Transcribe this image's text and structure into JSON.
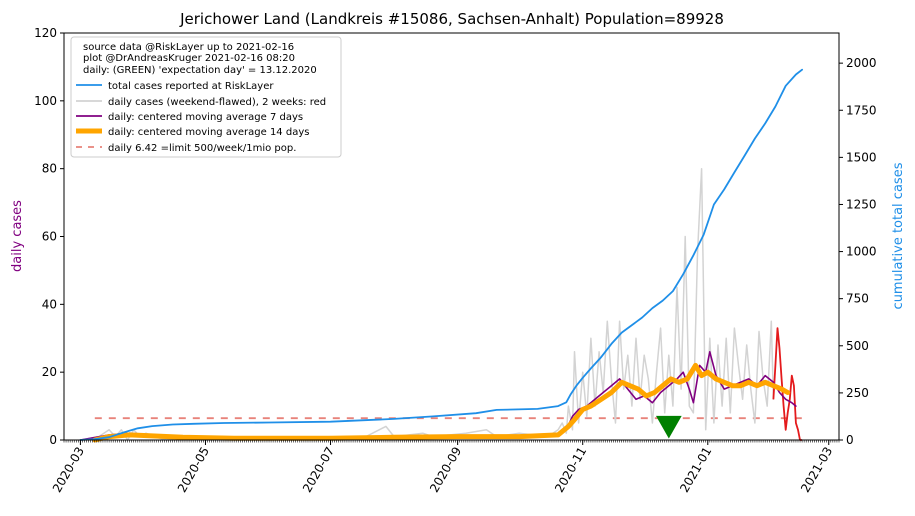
{
  "chart_data": {
    "type": "line",
    "title": "Jerichower Land (Landkreis #15086, Sachsen-Anhalt) Population=89928",
    "ylabel_left": "daily cases",
    "ylabel_right": "cumulative total cases",
    "ylim_left": [
      0,
      120
    ],
    "ylim_right": [
      0,
      2160
    ],
    "yticks_left": [
      0,
      20,
      40,
      60,
      80,
      100,
      120
    ],
    "yticks_right": [
      0,
      250,
      500,
      750,
      1000,
      1250,
      1500,
      1750,
      2000
    ],
    "xlim": [
      "2020-02-22",
      "2021-03-06"
    ],
    "xticks": [
      "2020-03",
      "2020-05",
      "2020-07",
      "2020-09",
      "2020-11",
      "2021-01",
      "2021-03"
    ],
    "grid": false,
    "legend_position": "top-left",
    "legend_info_lines": [
      "source data @RiskLayer up to 2021-02-16",
      "plot @DrAndreasKruger 2021-02-16 08:20",
      "daily: (GREEN) 'expectation day' = 13.12.2020"
    ],
    "expectation_day": {
      "date": "2020-12-13",
      "y": 4,
      "color": "#008000"
    },
    "limit_line": {
      "value": 6.42
    },
    "series": [
      {
        "name": "total cases reported at RiskLayer",
        "axis": "right",
        "color": "#1f8fe8",
        "points": [
          [
            "2020-03-01",
            0
          ],
          [
            "2020-03-08",
            5
          ],
          [
            "2020-03-15",
            15
          ],
          [
            "2020-03-22",
            40
          ],
          [
            "2020-03-29",
            62
          ],
          [
            "2020-04-05",
            74
          ],
          [
            "2020-04-15",
            82
          ],
          [
            "2020-04-25",
            86
          ],
          [
            "2020-05-10",
            90
          ],
          [
            "2020-06-01",
            93
          ],
          [
            "2020-07-01",
            97
          ],
          [
            "2020-08-01",
            112
          ],
          [
            "2020-08-20",
            125
          ],
          [
            "2020-09-10",
            142
          ],
          [
            "2020-09-20",
            160
          ],
          [
            "2020-10-10",
            165
          ],
          [
            "2020-10-20",
            180
          ],
          [
            "2020-10-24",
            200
          ],
          [
            "2020-10-26",
            240
          ],
          [
            "2020-10-29",
            290
          ],
          [
            "2020-11-01",
            330
          ],
          [
            "2020-11-05",
            380
          ],
          [
            "2020-11-10",
            440
          ],
          [
            "2020-11-15",
            510
          ],
          [
            "2020-11-20",
            570
          ],
          [
            "2020-11-25",
            610
          ],
          [
            "2020-11-30",
            650
          ],
          [
            "2020-12-05",
            700
          ],
          [
            "2020-12-10",
            740
          ],
          [
            "2020-12-15",
            790
          ],
          [
            "2020-12-20",
            880
          ],
          [
            "2020-12-25",
            980
          ],
          [
            "2020-12-30",
            1090
          ],
          [
            "2021-01-04",
            1250
          ],
          [
            "2021-01-09",
            1330
          ],
          [
            "2021-01-14",
            1420
          ],
          [
            "2021-01-19",
            1510
          ],
          [
            "2021-01-24",
            1600
          ],
          [
            "2021-01-29",
            1680
          ],
          [
            "2021-02-03",
            1770
          ],
          [
            "2021-02-08",
            1880
          ],
          [
            "2021-02-13",
            1940
          ],
          [
            "2021-02-16",
            1965
          ]
        ]
      },
      {
        "name": "daily cases (weekend-flawed), 2 weeks: red",
        "axis": "left",
        "color": "#d3d3d3",
        "recent_color": "#e41a1c",
        "points": [
          [
            "2020-03-01",
            0
          ],
          [
            "2020-03-10",
            1
          ],
          [
            "2020-03-15",
            3
          ],
          [
            "2020-03-18",
            1
          ],
          [
            "2020-03-21",
            3
          ],
          [
            "2020-03-24",
            0
          ],
          [
            "2020-03-27",
            3
          ],
          [
            "2020-03-30",
            1
          ],
          [
            "2020-04-02",
            2
          ],
          [
            "2020-04-06",
            1
          ],
          [
            "2020-04-12",
            0
          ],
          [
            "2020-04-20",
            1
          ],
          [
            "2020-05-01",
            0
          ],
          [
            "2020-05-10",
            1
          ],
          [
            "2020-06-01",
            0
          ],
          [
            "2020-07-01",
            1
          ],
          [
            "2020-07-15",
            0
          ],
          [
            "2020-07-28",
            4
          ],
          [
            "2020-08-01",
            1
          ],
          [
            "2020-08-15",
            2
          ],
          [
            "2020-08-20",
            1
          ],
          [
            "2020-09-05",
            2
          ],
          [
            "2020-09-15",
            3
          ],
          [
            "2020-09-20",
            1
          ],
          [
            "2020-10-01",
            2
          ],
          [
            "2020-10-15",
            1
          ],
          [
            "2020-10-20",
            3
          ],
          [
            "2020-10-22",
            5
          ],
          [
            "2020-10-24",
            2
          ],
          [
            "2020-10-25",
            10
          ],
          [
            "2020-10-27",
            3
          ],
          [
            "2020-10-28",
            26
          ],
          [
            "2020-10-30",
            5
          ],
          [
            "2020-11-01",
            20
          ],
          [
            "2020-11-03",
            7
          ],
          [
            "2020-11-05",
            30
          ],
          [
            "2020-11-07",
            10
          ],
          [
            "2020-11-09",
            26
          ],
          [
            "2020-11-11",
            14
          ],
          [
            "2020-11-13",
            35
          ],
          [
            "2020-11-15",
            18
          ],
          [
            "2020-11-17",
            5
          ],
          [
            "2020-11-19",
            35
          ],
          [
            "2020-11-21",
            15
          ],
          [
            "2020-11-23",
            25
          ],
          [
            "2020-11-25",
            10
          ],
          [
            "2020-11-27",
            30
          ],
          [
            "2020-11-29",
            12
          ],
          [
            "2020-12-01",
            25
          ],
          [
            "2020-12-03",
            18
          ],
          [
            "2020-12-05",
            5
          ],
          [
            "2020-12-07",
            20
          ],
          [
            "2020-12-09",
            33
          ],
          [
            "2020-12-11",
            8
          ],
          [
            "2020-12-13",
            25
          ],
          [
            "2020-12-15",
            10
          ],
          [
            "2020-12-17",
            45
          ],
          [
            "2020-12-19",
            15
          ],
          [
            "2020-12-21",
            60
          ],
          [
            "2020-12-23",
            10
          ],
          [
            "2020-12-25",
            8
          ],
          [
            "2020-12-27",
            55
          ],
          [
            "2020-12-29",
            80
          ],
          [
            "2020-12-31",
            3
          ],
          [
            "2021-01-02",
            30
          ],
          [
            "2021-01-04",
            5
          ],
          [
            "2021-01-06",
            28
          ],
          [
            "2021-01-08",
            10
          ],
          [
            "2021-01-10",
            30
          ],
          [
            "2021-01-12",
            8
          ],
          [
            "2021-01-14",
            33
          ],
          [
            "2021-01-16",
            22
          ],
          [
            "2021-01-18",
            12
          ],
          [
            "2021-01-20",
            28
          ],
          [
            "2021-01-22",
            15
          ],
          [
            "2021-01-24",
            5
          ],
          [
            "2021-01-26",
            32
          ],
          [
            "2021-01-28",
            18
          ],
          [
            "2021-01-30",
            10
          ],
          [
            "2021-02-01",
            35
          ],
          [
            "2021-02-02",
            12
          ]
        ],
        "recent_points": [
          [
            "2021-02-02",
            12
          ],
          [
            "2021-02-03",
            22
          ],
          [
            "2021-02-04",
            33
          ],
          [
            "2021-02-05",
            27
          ],
          [
            "2021-02-06",
            18
          ],
          [
            "2021-02-07",
            10
          ],
          [
            "2021-02-08",
            3
          ],
          [
            "2021-02-09",
            8
          ],
          [
            "2021-02-10",
            12
          ],
          [
            "2021-02-11",
            19
          ],
          [
            "2021-02-12",
            16
          ],
          [
            "2021-02-13",
            5
          ],
          [
            "2021-02-14",
            3
          ],
          [
            "2021-02-15",
            0
          ],
          [
            "2021-02-16",
            0
          ]
        ]
      },
      {
        "name": "daily: centered moving average 7 days",
        "axis": "left",
        "color": "#800080",
        "points": [
          [
            "2020-03-01",
            0
          ],
          [
            "2020-03-15",
            1.5
          ],
          [
            "2020-03-25",
            2
          ],
          [
            "2020-04-05",
            1.5
          ],
          [
            "2020-04-20",
            1
          ],
          [
            "2020-05-15",
            0.5
          ],
          [
            "2020-07-01",
            0.5
          ],
          [
            "2020-08-01",
            0.8
          ],
          [
            "2020-09-01",
            1
          ],
          [
            "2020-10-01",
            1.2
          ],
          [
            "2020-10-20",
            1.5
          ],
          [
            "2020-10-24",
            3
          ],
          [
            "2020-10-27",
            7
          ],
          [
            "2020-10-30",
            9
          ],
          [
            "2020-11-03",
            10
          ],
          [
            "2020-11-07",
            12
          ],
          [
            "2020-11-11",
            14
          ],
          [
            "2020-11-15",
            16
          ],
          [
            "2020-11-19",
            18
          ],
          [
            "2020-11-23",
            15
          ],
          [
            "2020-11-27",
            12
          ],
          [
            "2020-12-01",
            13
          ],
          [
            "2020-12-05",
            11
          ],
          [
            "2020-12-09",
            14
          ],
          [
            "2020-12-13",
            16
          ],
          [
            "2020-12-17",
            18
          ],
          [
            "2020-12-20",
            20
          ],
          [
            "2020-12-23",
            15
          ],
          [
            "2020-12-25",
            11
          ],
          [
            "2020-12-28",
            22
          ],
          [
            "2020-12-31",
            20
          ],
          [
            "2021-01-02",
            26
          ],
          [
            "2021-01-05",
            19
          ],
          [
            "2021-01-09",
            15
          ],
          [
            "2021-01-13",
            16
          ],
          [
            "2021-01-17",
            17
          ],
          [
            "2021-01-21",
            18
          ],
          [
            "2021-01-25",
            16
          ],
          [
            "2021-01-29",
            19
          ],
          [
            "2021-02-02",
            17
          ],
          [
            "2021-02-05",
            14
          ],
          [
            "2021-02-08",
            12
          ],
          [
            "2021-02-11",
            11
          ],
          [
            "2021-02-13",
            10
          ]
        ]
      },
      {
        "name": "daily: centered moving average 14 days",
        "axis": "left",
        "color": "#ffa500",
        "points": [
          [
            "2020-03-08",
            0
          ],
          [
            "2020-03-15",
            1
          ],
          [
            "2020-03-25",
            1.5
          ],
          [
            "2020-04-05",
            1.2
          ],
          [
            "2020-04-20",
            0.8
          ],
          [
            "2020-05-15",
            0.5
          ],
          [
            "2020-07-01",
            0.5
          ],
          [
            "2020-08-01",
            0.8
          ],
          [
            "2020-09-01",
            1
          ],
          [
            "2020-10-01",
            1
          ],
          [
            "2020-10-20",
            1.5
          ],
          [
            "2020-10-25",
            4
          ],
          [
            "2020-10-28",
            6
          ],
          [
            "2020-11-01",
            9
          ],
          [
            "2020-11-05",
            10
          ],
          [
            "2020-11-10",
            12
          ],
          [
            "2020-11-15",
            14
          ],
          [
            "2020-11-20",
            17
          ],
          [
            "2020-11-24",
            16
          ],
          [
            "2020-11-28",
            15
          ],
          [
            "2020-12-02",
            13
          ],
          [
            "2020-12-06",
            14
          ],
          [
            "2020-12-10",
            16
          ],
          [
            "2020-12-14",
            18
          ],
          [
            "2020-12-18",
            17
          ],
          [
            "2020-12-22",
            18
          ],
          [
            "2020-12-26",
            22
          ],
          [
            "2020-12-29",
            19
          ],
          [
            "2021-01-01",
            20
          ],
          [
            "2021-01-05",
            18
          ],
          [
            "2021-01-09",
            17
          ],
          [
            "2021-01-13",
            16
          ],
          [
            "2021-01-17",
            16
          ],
          [
            "2021-01-21",
            17
          ],
          [
            "2021-01-25",
            16
          ],
          [
            "2021-01-29",
            17
          ],
          [
            "2021-02-02",
            16
          ],
          [
            "2021-02-06",
            15
          ],
          [
            "2021-02-09",
            14
          ]
        ]
      },
      {
        "name": "daily 6.42 =limit 500/week/1mio pop.",
        "axis": "left",
        "color": "#e8827a",
        "dashed": true,
        "points": [
          [
            "2020-03-08",
            6.42
          ],
          [
            "2021-02-16",
            6.42
          ]
        ]
      }
    ]
  }
}
